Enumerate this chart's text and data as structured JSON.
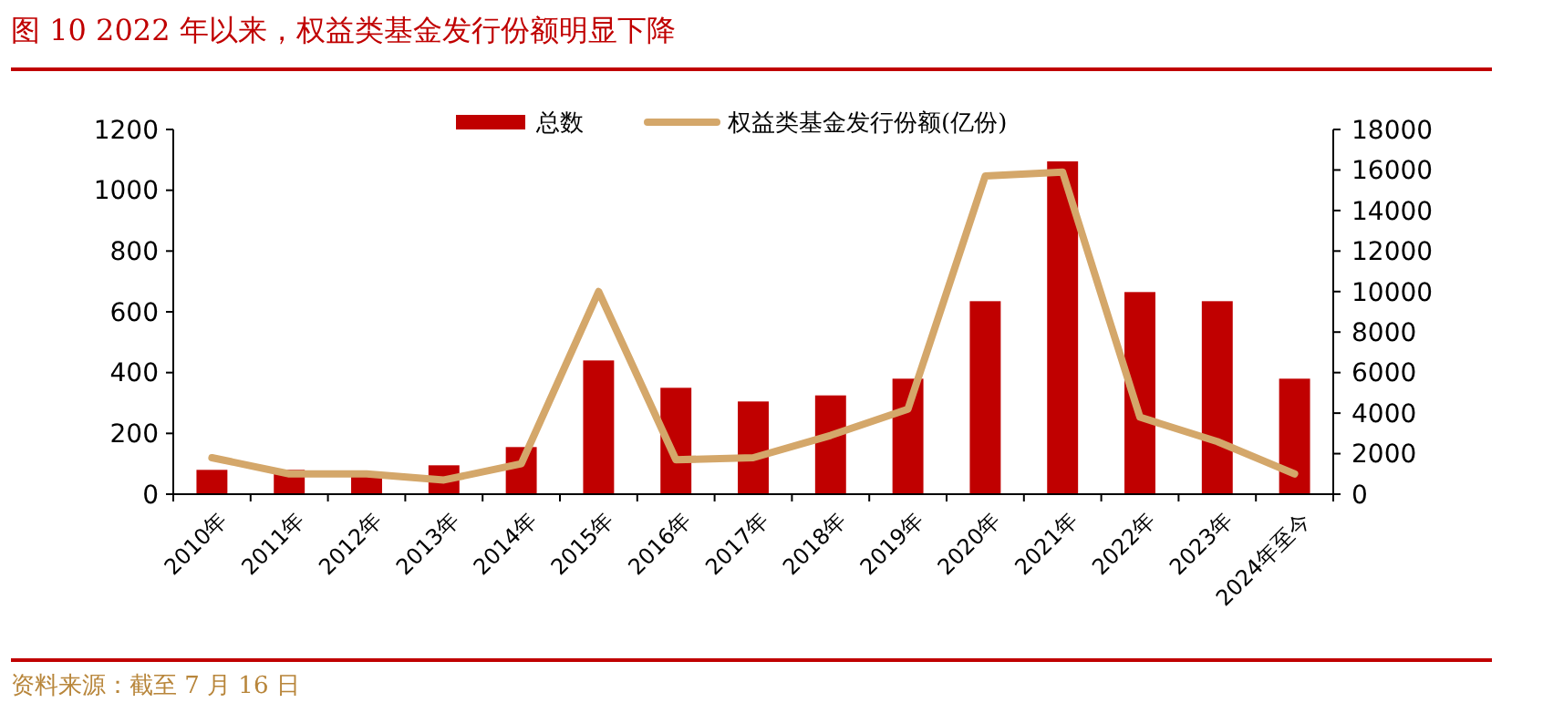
{
  "chart_data": {
    "type": "bar",
    "title": "图 10 2022 年以来，权益类基金发行份额明显下降",
    "categories": [
      "2010年",
      "2011年",
      "2012年",
      "2013年",
      "2014年",
      "2015年",
      "2016年",
      "2017年",
      "2018年",
      "2019年",
      "2020年",
      "2021年",
      "2022年",
      "2023年",
      "2024年至今"
    ],
    "series": [
      {
        "name": "总数",
        "color": "#c00000",
        "values": [
          80,
          80,
          70,
          95,
          155,
          440,
          350,
          305,
          325,
          380,
          635,
          1095,
          665,
          635,
          380
        ]
      },
      {
        "name": "权益类基金发行份额(亿份)",
        "color": "#d4a76a",
        "type": "line",
        "axis": "y2",
        "values": [
          1800,
          1000,
          1000,
          700,
          1500,
          10000,
          1700,
          1800,
          2900,
          4200,
          15700,
          15900,
          3800,
          2600,
          1000
        ]
      }
    ],
    "ylim": [
      0,
      1200
    ],
    "yticks": [
      0,
      200,
      400,
      600,
      800,
      1000,
      1200
    ],
    "y2lim": [
      0,
      18000
    ],
    "y2ticks": [
      0,
      2000,
      4000,
      6000,
      8000,
      10000,
      12000,
      14000,
      16000,
      18000
    ],
    "legend": "top",
    "grid": false,
    "marker": "none",
    "line_style": "solid",
    "annotations": [
      "资料来源：截至 7 月 16 日"
    ]
  }
}
